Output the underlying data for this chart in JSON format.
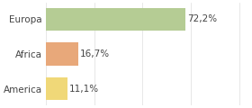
{
  "categories": [
    "America",
    "Africa",
    "Europa"
  ],
  "values": [
    11.1,
    16.7,
    72.2
  ],
  "labels": [
    "11,1%",
    "16,7%",
    "72,2%"
  ],
  "bar_colors": [
    "#f0d878",
    "#e8a87a",
    "#b5cc94"
  ],
  "background_color": "#ffffff",
  "xlim": [
    0,
    105
  ],
  "bar_height": 0.65,
  "label_fontsize": 7.5,
  "tick_fontsize": 7.5,
  "label_color": "#444444",
  "tick_color": "#444444"
}
